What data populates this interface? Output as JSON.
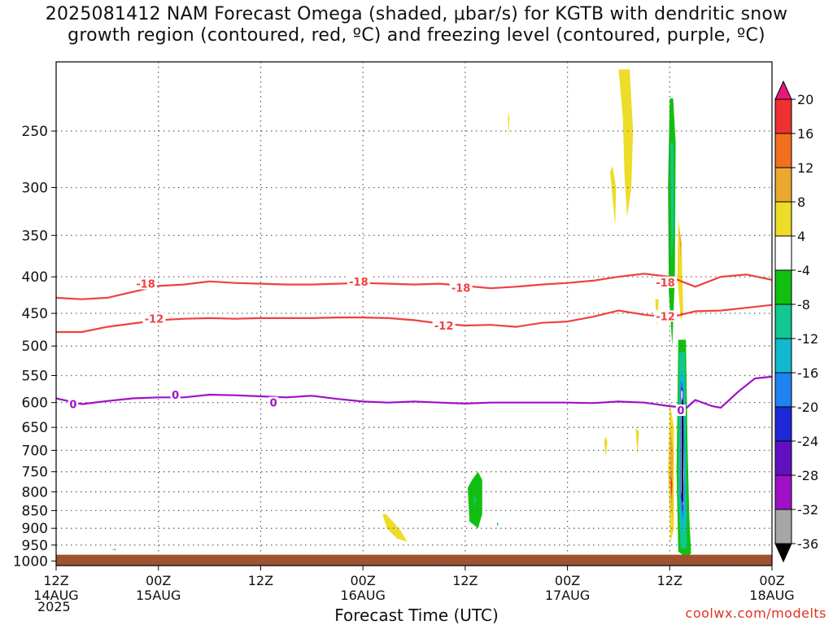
{
  "title_line1": "2025081412 NAM Forecast Omega (shaded, μbar/s) for KGTB with dendritic snow",
  "title_line2": "growth region (contoured, red, ºC) and freezing level (contoured, purple, ºC)",
  "xlabel": "Forecast Time (UTC)",
  "credit": "coolwx.com/modelts",
  "year": "2025",
  "chart_data": {
    "type": "heatmap",
    "x_ticks": [
      {
        "hour": 0,
        "top": "12Z",
        "bottom": "14AUG"
      },
      {
        "hour": 12,
        "top": "00Z",
        "bottom": "15AUG"
      },
      {
        "hour": 24,
        "top": "12Z",
        "bottom": ""
      },
      {
        "hour": 36,
        "top": "00Z",
        "bottom": "16AUG"
      },
      {
        "hour": 48,
        "top": "12Z",
        "bottom": ""
      },
      {
        "hour": 60,
        "top": "00Z",
        "bottom": "17AUG"
      },
      {
        "hour": 72,
        "top": "12Z",
        "bottom": ""
      },
      {
        "hour": 84,
        "top": "00Z",
        "bottom": "18AUG"
      }
    ],
    "xlim": [
      0,
      84
    ],
    "y_ticks": [
      250,
      300,
      350,
      400,
      450,
      500,
      550,
      600,
      650,
      700,
      750,
      800,
      850,
      900,
      950,
      1000
    ],
    "ylim": [
      200,
      1015
    ],
    "y_scale": "log",
    "colorbar": {
      "labels": [
        "20",
        "16",
        "12",
        "8",
        "4",
        "-4",
        "-8",
        "-12",
        "-16",
        "-20",
        "-24",
        "-28",
        "-32",
        "-36"
      ],
      "colors": [
        "#e8187a",
        "#ee3030",
        "#f07020",
        "#eaa830",
        "#eddc28",
        "#ffffff",
        "#10c010",
        "#10c890",
        "#10b8d0",
        "#1e82f0",
        "#1e28d8",
        "#6010c0",
        "#a010c8",
        "#a6a6a6",
        "#000000"
      ]
    },
    "series": [
      {
        "name": "-18",
        "color": "#f04040",
        "x": [
          0,
          3,
          6,
          9,
          12,
          15,
          18,
          21,
          24,
          27,
          30,
          33,
          36,
          39,
          42,
          45,
          48,
          51,
          54,
          57,
          60,
          63,
          66,
          69,
          72,
          75,
          78,
          81,
          84
        ],
        "y": [
          428,
          430,
          428,
          420,
          412,
          410,
          406,
          408,
          409,
          410,
          410,
          409,
          408,
          409,
          410,
          409,
          412,
          415,
          413,
          410,
          408,
          405,
          400,
          396,
          400,
          413,
          400,
          397,
          404
        ]
      },
      {
        "name": "-12",
        "color": "#f04040",
        "x": [
          0,
          3,
          6,
          9,
          12,
          15,
          18,
          21,
          24,
          27,
          30,
          33,
          36,
          39,
          42,
          45,
          48,
          51,
          54,
          57,
          60,
          63,
          66,
          69,
          72,
          75,
          78,
          81,
          84
        ],
        "y": [
          478,
          478,
          470,
          465,
          460,
          458,
          457,
          458,
          457,
          457,
          457,
          456,
          456,
          457,
          460,
          465,
          468,
          467,
          470,
          464,
          462,
          455,
          446,
          452,
          456,
          447,
          446,
          442,
          438
        ]
      },
      {
        "name": "0",
        "color": "#a010c8",
        "x": [
          0,
          3,
          6,
          9,
          12,
          15,
          18,
          21,
          24,
          27,
          30,
          33,
          36,
          39,
          42,
          45,
          48,
          51,
          54,
          57,
          60,
          63,
          66,
          69,
          72,
          74,
          75,
          77,
          78,
          80,
          82,
          84
        ],
        "y": [
          592,
          603,
          597,
          592,
          590,
          590,
          585,
          586,
          588,
          590,
          587,
          593,
          598,
          600,
          598,
          600,
          602,
          600,
          600,
          600,
          600,
          601,
          598,
          600,
          607,
          610,
          595,
          607,
          610,
          580,
          555,
          552
        ]
      }
    ],
    "contour_labels": [
      {
        "text": "-18",
        "x": 10.5,
        "y": 409
      },
      {
        "text": "-18",
        "x": 35.5,
        "y": 406
      },
      {
        "text": "-18",
        "x": 47.5,
        "y": 414
      },
      {
        "text": "-18",
        "x": 71.5,
        "y": 407
      },
      {
        "text": "-12",
        "x": 11.5,
        "y": 458
      },
      {
        "text": "-12",
        "x": 45.5,
        "y": 468
      },
      {
        "text": "-12",
        "x": 71.5,
        "y": 454
      },
      {
        "text": "0",
        "x": 2,
        "y": 603
      },
      {
        "text": "0",
        "x": 14,
        "y": 585
      },
      {
        "text": "0",
        "x": 25.5,
        "y": 600
      },
      {
        "text": "0",
        "x": 73.3,
        "y": 615
      }
    ],
    "shaded_regions": [
      {
        "color": "#eddc28",
        "points": [
          [
            66,
            205
          ],
          [
            66.5,
            240
          ],
          [
            66.7,
            290
          ],
          [
            67,
            330
          ],
          [
            67.5,
            300
          ],
          [
            67.7,
            250
          ],
          [
            67.3,
            205
          ]
        ]
      },
      {
        "color": "#eddc28",
        "points": [
          [
            65.0,
            285
          ],
          [
            65.4,
            320
          ],
          [
            65.6,
            340
          ],
          [
            65.7,
            300
          ],
          [
            65.3,
            280
          ]
        ]
      },
      {
        "color": "#eddc28",
        "points": [
          [
            53.0,
            235
          ],
          [
            53.1,
            255
          ],
          [
            53.2,
            240
          ]
        ]
      },
      {
        "color": "#eddc28",
        "points": [
          [
            70.3,
            430
          ],
          [
            70.5,
            470
          ],
          [
            70.7,
            430
          ]
        ]
      },
      {
        "color": "#eddc28",
        "points": [
          [
            64.3,
            680
          ],
          [
            64.5,
            715
          ],
          [
            64.7,
            680
          ],
          [
            64.5,
            670
          ]
        ]
      },
      {
        "color": "#eddc28",
        "points": [
          [
            68.0,
            650
          ],
          [
            68.2,
            710
          ],
          [
            68.4,
            660
          ]
        ]
      },
      {
        "color": "#eddc28",
        "points": [
          [
            73.0,
            330
          ],
          [
            73.4,
            370
          ],
          [
            73.6,
            450
          ],
          [
            73.3,
            460
          ],
          [
            72.9,
            400
          ]
        ]
      },
      {
        "color": "#eaa830",
        "points": [
          [
            73.1,
            340
          ],
          [
            73.3,
            380
          ],
          [
            73.4,
            360
          ]
        ]
      },
      {
        "color": "#10c010",
        "points": [
          [
            72,
            225
          ],
          [
            71.8,
            300
          ],
          [
            71.9,
            420
          ],
          [
            72.3,
            500
          ],
          [
            72.6,
            400
          ],
          [
            72.7,
            260
          ],
          [
            72.4,
            225
          ]
        ]
      },
      {
        "color": "#10c890",
        "points": [
          [
            72.1,
            260
          ],
          [
            72.2,
            380
          ],
          [
            72.5,
            340
          ],
          [
            72.4,
            260
          ]
        ]
      },
      {
        "color": "#eddc28",
        "points": [
          [
            72.0,
            600
          ],
          [
            71.8,
            750
          ],
          [
            72.1,
            940
          ],
          [
            72.5,
            900
          ],
          [
            72.5,
            650
          ]
        ]
      },
      {
        "color": "#eaa830",
        "points": [
          [
            72.1,
            650
          ],
          [
            72.0,
            780
          ],
          [
            72.3,
            880
          ],
          [
            72.4,
            700
          ]
        ]
      },
      {
        "color": "#ee3030",
        "points": [
          [
            72.1,
            750
          ],
          [
            72.2,
            820
          ],
          [
            72.3,
            780
          ]
        ]
      },
      {
        "color": "#10c010",
        "points": [
          [
            73.0,
            490
          ],
          [
            72.8,
            750
          ],
          [
            73.0,
            970
          ],
          [
            74.0,
            990
          ],
          [
            74.5,
            975
          ],
          [
            74.3,
            870
          ],
          [
            74.1,
            700
          ],
          [
            73.9,
            490
          ]
        ]
      },
      {
        "color": "#10c890",
        "points": [
          [
            73.1,
            510
          ],
          [
            73.0,
            800
          ],
          [
            73.3,
            960
          ],
          [
            74.0,
            960
          ],
          [
            74.0,
            800
          ],
          [
            73.8,
            510
          ]
        ]
      },
      {
        "color": "#10b8d0",
        "points": [
          [
            73.2,
            540
          ],
          [
            73.1,
            800
          ],
          [
            73.4,
            920
          ],
          [
            73.9,
            880
          ],
          [
            73.7,
            550
          ]
        ]
      },
      {
        "color": "#1e82f0",
        "points": [
          [
            73.25,
            560
          ],
          [
            73.2,
            800
          ],
          [
            73.5,
            880
          ],
          [
            73.75,
            800
          ],
          [
            73.6,
            565
          ]
        ]
      },
      {
        "color": "#6010c0",
        "points": [
          [
            73.3,
            570
          ],
          [
            73.3,
            800
          ],
          [
            73.55,
            860
          ],
          [
            73.7,
            780
          ],
          [
            73.55,
            575
          ]
        ]
      },
      {
        "color": "#ffffff",
        "points": [
          [
            73.35,
            575
          ],
          [
            73.35,
            800
          ],
          [
            73.6,
            840
          ],
          [
            73.65,
            760
          ],
          [
            73.5,
            580
          ]
        ]
      },
      {
        "color": "#000000",
        "points": [
          [
            73.4,
            590
          ],
          [
            73.4,
            820
          ],
          [
            73.58,
            830
          ],
          [
            73.58,
            600
          ]
        ]
      },
      {
        "color": "#eddc28",
        "points": [
          [
            38.3,
            860
          ],
          [
            38.8,
            900
          ],
          [
            40.0,
            930
          ],
          [
            41.2,
            940
          ],
          [
            40.5,
            910
          ],
          [
            39.5,
            880
          ],
          [
            38.7,
            860
          ]
        ]
      },
      {
        "color": "#eddc28",
        "points": [
          [
            42.0,
            995
          ],
          [
            44.5,
            985
          ],
          [
            48.0,
            982
          ],
          [
            47.0,
            995
          ],
          [
            43.5,
            1000
          ]
        ]
      },
      {
        "color": "#10c010",
        "points": [
          [
            48.3,
            790
          ],
          [
            48.5,
            880
          ],
          [
            49.5,
            900
          ],
          [
            50.0,
            860
          ],
          [
            50.0,
            770
          ],
          [
            49.5,
            750
          ],
          [
            48.8,
            770
          ]
        ]
      },
      {
        "color": "#10c890",
        "points": [
          [
            49.0,
            810
          ],
          [
            49.1,
            840
          ],
          [
            49.3,
            820
          ]
        ]
      },
      {
        "color": "#10c010",
        "points": [
          [
            51.7,
            885
          ],
          [
            51.8,
            895
          ],
          [
            51.9,
            885
          ]
        ]
      },
      {
        "color": "#10c010",
        "points": [
          [
            6.5,
            963
          ],
          [
            7.0,
            966
          ],
          [
            7.0,
            962
          ]
        ]
      }
    ],
    "ground": {
      "color": "#a0522d",
      "top": 980
    }
  }
}
